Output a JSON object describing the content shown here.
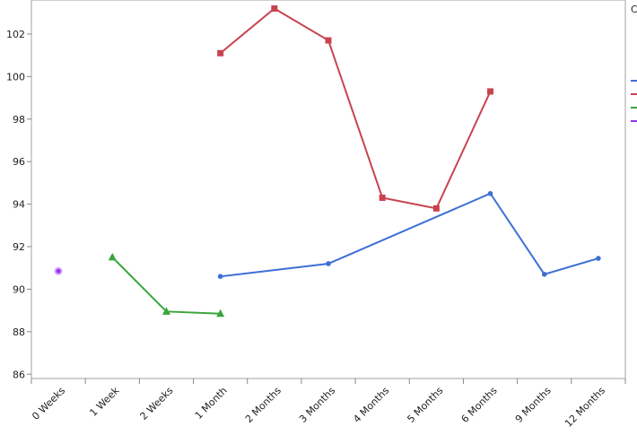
{
  "chart_data": {
    "type": "line",
    "categories": [
      "0 Weeks",
      "1 Week",
      "2 Weeks",
      "1 Month",
      "2 Months",
      "3 Months",
      "4 Months",
      "5 Months",
      "6 Months",
      "9 Months",
      "12 Months"
    ],
    "ylim": [
      85.8,
      103.6
    ],
    "yticks": [
      86,
      88,
      90,
      92,
      94,
      96,
      98,
      100,
      102
    ],
    "legend_title": "C",
    "legend": "right",
    "series": [
      {
        "color": "#3e6fd6",
        "marker": "circle",
        "x": [
          "1 Month",
          "3 Months",
          "6 Months",
          "9 Months",
          "12 Months"
        ],
        "values": [
          90.6,
          91.2,
          94.5,
          90.7,
          91.45
        ]
      },
      {
        "color": "#c8434f",
        "marker": "square",
        "x": [
          "1 Month",
          "2 Months",
          "3 Months",
          "4 Months",
          "5 Months",
          "6 Months"
        ],
        "values": [
          101.1,
          103.2,
          101.7,
          94.3,
          93.8,
          99.3
        ]
      },
      {
        "color": "#3aa53a",
        "marker": "triangle",
        "x": [
          "1 Week",
          "2 Weeks",
          "1 Month"
        ],
        "values": [
          91.5,
          88.95,
          88.85
        ]
      },
      {
        "color": "#9933ee",
        "marker": "ring",
        "x": [
          "0 Weeks"
        ],
        "values": [
          90.85
        ]
      }
    ]
  }
}
